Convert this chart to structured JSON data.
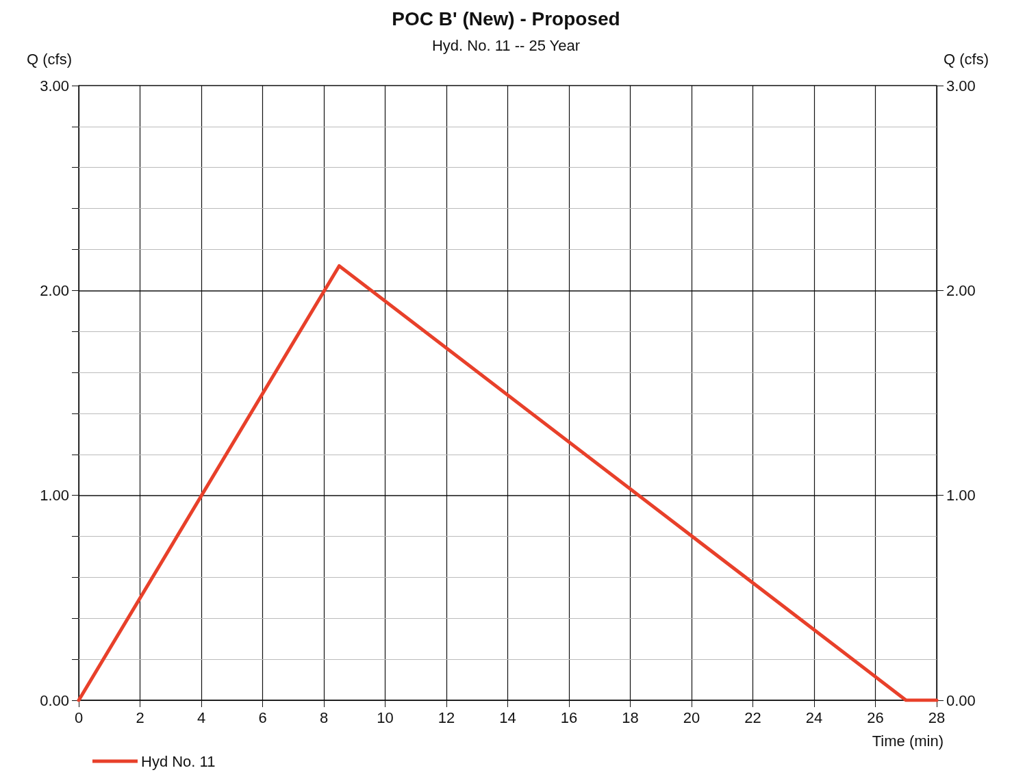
{
  "chart_data": {
    "type": "line",
    "title": "POC B' (New) - Proposed",
    "subtitle": "Hyd. No. 11 -- 25 Year",
    "xlabel": "Time (min)",
    "ylabel": "Q (cfs)",
    "y2label": "Q (cfs)",
    "series": [
      {
        "name": "Hyd No. 11",
        "color": "#e8402a",
        "x": [
          0,
          8.5,
          27,
          28
        ],
        "values": [
          0,
          2.12,
          0,
          0
        ]
      }
    ],
    "xlim": [
      0,
      28
    ],
    "xticks": [
      0,
      2,
      4,
      6,
      8,
      10,
      12,
      14,
      16,
      18,
      20,
      22,
      24,
      26,
      28
    ],
    "ylim": [
      0,
      3
    ],
    "yticks": [
      {
        "value": 0,
        "label": "0.00"
      },
      {
        "value": 0.2,
        "label": null
      },
      {
        "value": 0.4,
        "label": null
      },
      {
        "value": 0.6,
        "label": null
      },
      {
        "value": 0.8,
        "label": null
      },
      {
        "value": 1,
        "label": "1.00"
      },
      {
        "value": 1.2,
        "label": null
      },
      {
        "value": 1.4,
        "label": null
      },
      {
        "value": 1.6,
        "label": null
      },
      {
        "value": 1.8,
        "label": null
      },
      {
        "value": 2,
        "label": "2.00"
      },
      {
        "value": 2.2,
        "label": null
      },
      {
        "value": 2.4,
        "label": null
      },
      {
        "value": 2.6,
        "label": null
      },
      {
        "value": 2.8,
        "label": null
      },
      {
        "value": 3,
        "label": "3.00"
      }
    ],
    "y2lim": [
      0,
      3
    ],
    "y2ticks": [
      {
        "value": 0,
        "label": "0.00"
      },
      {
        "value": 1,
        "label": "1.00"
      },
      {
        "value": 2,
        "label": "2.00"
      },
      {
        "value": 3,
        "label": "3.00"
      }
    ],
    "grid": true,
    "legend": "bottom left",
    "marker": "none",
    "line_style": "solid"
  }
}
